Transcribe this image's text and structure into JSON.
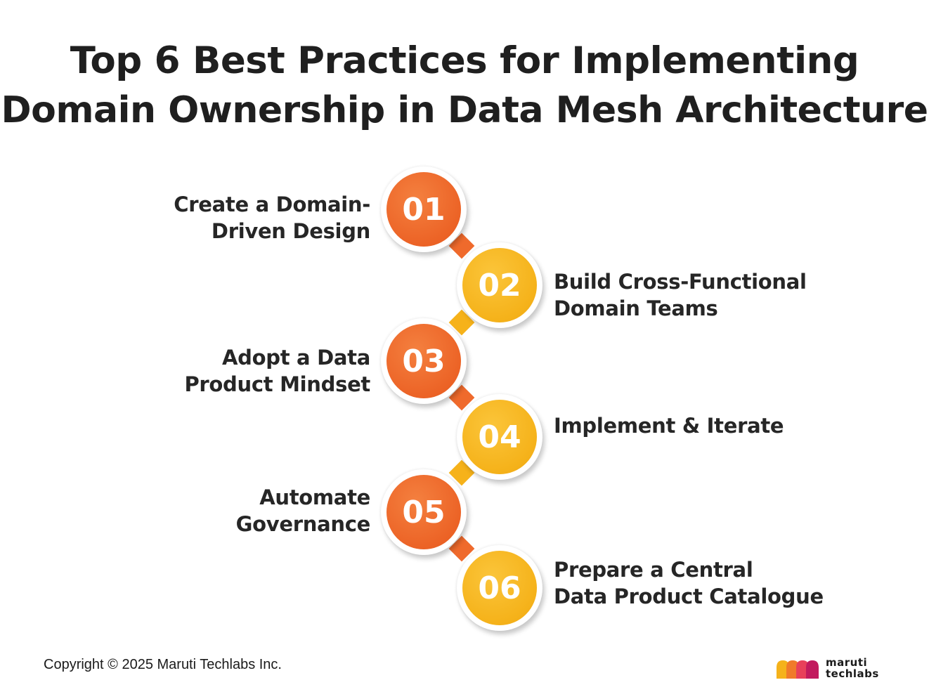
{
  "title": {
    "line1": "Top 6 Best Practices for Implementing",
    "line2": "Domain Ownership in Data Mesh Architecture"
  },
  "steps": [
    {
      "number": "01",
      "lines": [
        "Create a Domain-",
        "Driven Design"
      ],
      "side": "left",
      "color": "#ec6326"
    },
    {
      "number": "02",
      "lines": [
        "Build Cross-Functional",
        "Domain Teams"
      ],
      "side": "right",
      "color": "#f5b21a"
    },
    {
      "number": "03",
      "lines": [
        "Adopt a Data",
        "Product Mindset"
      ],
      "side": "left",
      "color": "#ec6326"
    },
    {
      "number": "04",
      "lines": [
        "Implement & Iterate"
      ],
      "side": "right",
      "color": "#f5b21a"
    },
    {
      "number": "05",
      "lines": [
        "Automate",
        "Governance"
      ],
      "side": "left",
      "color": "#ec6326"
    },
    {
      "number": "06",
      "lines": [
        "Prepare a Central",
        "Data Product Catalogue"
      ],
      "side": "right",
      "color": "#f5b21a"
    }
  ],
  "footer": {
    "copyright": "Copyright © 2025 Maruti Techlabs Inc.",
    "logo_line1": "maruti",
    "logo_line2": "techlabs"
  },
  "colors": {
    "orange": "#ec6326",
    "yellow": "#f5b21a",
    "text": "#1f1f1f"
  }
}
